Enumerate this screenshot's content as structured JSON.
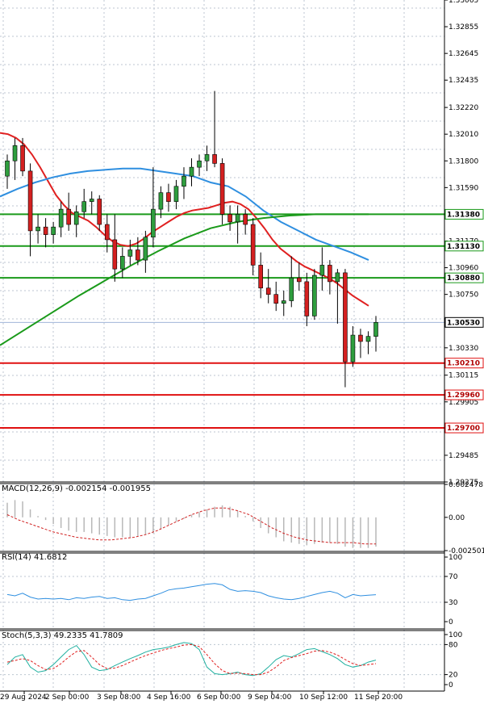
{
  "panels": {
    "macd": {
      "label": "MACD(12,26,9) -0.002154 -0.001955",
      "ticks": [
        "0.002478",
        "0.00",
        "-0.002501"
      ]
    },
    "rsi": {
      "label": "RSI(14) 41.6812",
      "ticks": [
        "100",
        "70",
        "30",
        "0"
      ]
    },
    "stoch": {
      "label": "Stoch(5,3,3) 49.2335 41.7809",
      "ticks": [
        "100",
        "80",
        "20",
        "0"
      ]
    }
  },
  "colors": {
    "bull": "#2e9e3e",
    "bear": "#d42020",
    "wick": "#000000",
    "ma_fast": "#e02020",
    "ma_mid": "#2f8fe0",
    "ma_slow": "#1a9a1a",
    "support": "#e01010",
    "resistance": "#1a9a1a",
    "current": "#a0b4d8",
    "grid": "#bcc6d0"
  },
  "chart_data": {
    "type": "candlestick",
    "y_range": [
      1.29275,
      1.33065
    ],
    "y_ticks": [
      "1.33065",
      "1.32855",
      "1.32645",
      "1.32435",
      "1.32220",
      "1.32010",
      "1.31800",
      "1.31590",
      "1.31380",
      "1.31170",
      "1.31130",
      "1.30960",
      "1.30880",
      "1.30750",
      "1.30530",
      "1.30330",
      "1.30210",
      "1.30115",
      "1.29960",
      "1.29905",
      "1.29700",
      "1.29485",
      "1.29275"
    ],
    "x_labels": [
      "29 Aug 2024",
      "2 Sep 00:00",
      "3 Sep 08:00",
      "4 Sep 16:00",
      "6 Sep 00:00",
      "9 Sep 04:00",
      "10 Sep 12:00",
      "11 Sep 20:00"
    ],
    "horizontal_levels": [
      {
        "value": 1.3138,
        "label": "1.31380",
        "kind": "resistance"
      },
      {
        "value": 1.3113,
        "label": "1.31130",
        "kind": "resistance"
      },
      {
        "value": 1.3088,
        "label": "1.30880",
        "kind": "resistance"
      },
      {
        "value": 1.3053,
        "label": "1.30530",
        "kind": "current"
      },
      {
        "value": 1.3021,
        "label": "1.30210",
        "kind": "support"
      },
      {
        "value": 1.2996,
        "label": "1.29960",
        "kind": "support"
      },
      {
        "value": 1.297,
        "label": "1.29700",
        "kind": "support"
      }
    ],
    "candles": [
      [
        1.3168,
        1.3185,
        1.3158,
        1.318
      ],
      [
        1.318,
        1.3198,
        1.3165,
        1.3192
      ],
      [
        1.3192,
        1.3198,
        1.3168,
        1.3172
      ],
      [
        1.3172,
        1.3178,
        1.3105,
        1.3125
      ],
      [
        1.3125,
        1.3138,
        1.3115,
        1.3128
      ],
      [
        1.3128,
        1.3135,
        1.3112,
        1.3122
      ],
      [
        1.3122,
        1.3132,
        1.3115,
        1.3128
      ],
      [
        1.3128,
        1.3148,
        1.312,
        1.3142
      ],
      [
        1.3142,
        1.3155,
        1.3125,
        1.313
      ],
      [
        1.313,
        1.3145,
        1.312,
        1.314
      ],
      [
        1.314,
        1.3158,
        1.3135,
        1.3148
      ],
      [
        1.3148,
        1.3156,
        1.3138,
        1.315
      ],
      [
        1.315,
        1.3153,
        1.3125,
        1.313
      ],
      [
        1.313,
        1.3138,
        1.3108,
        1.3118
      ],
      [
        1.3118,
        1.3138,
        1.3085,
        1.3095
      ],
      [
        1.3095,
        1.3112,
        1.3088,
        1.3105
      ],
      [
        1.3105,
        1.3118,
        1.3098,
        1.311
      ],
      [
        1.311,
        1.312,
        1.3098,
        1.3102
      ],
      [
        1.3102,
        1.3125,
        1.3092,
        1.312
      ],
      [
        1.312,
        1.3175,
        1.3112,
        1.3142
      ],
      [
        1.3142,
        1.316,
        1.3135,
        1.3155
      ],
      [
        1.3155,
        1.3162,
        1.314,
        1.3148
      ],
      [
        1.3148,
        1.3165,
        1.3142,
        1.316
      ],
      [
        1.316,
        1.3175,
        1.315,
        1.3168
      ],
      [
        1.3168,
        1.3182,
        1.316,
        1.3175
      ],
      [
        1.3175,
        1.3185,
        1.3168,
        1.318
      ],
      [
        1.318,
        1.3192,
        1.3172,
        1.3185
      ],
      [
        1.3185,
        1.3235,
        1.3175,
        1.3178
      ],
      [
        1.3178,
        1.3182,
        1.313,
        1.3138
      ],
      [
        1.3138,
        1.3145,
        1.3125,
        1.3132
      ],
      [
        1.3132,
        1.3145,
        1.3115,
        1.3138
      ],
      [
        1.3138,
        1.3142,
        1.3122,
        1.313
      ],
      [
        1.313,
        1.3135,
        1.309,
        1.3098
      ],
      [
        1.3098,
        1.3108,
        1.3072,
        1.308
      ],
      [
        1.308,
        1.3095,
        1.3068,
        1.3075
      ],
      [
        1.3075,
        1.3085,
        1.3062,
        1.3068
      ],
      [
        1.3068,
        1.3078,
        1.3058,
        1.307
      ],
      [
        1.307,
        1.3105,
        1.3065,
        1.3088
      ],
      [
        1.3088,
        1.31,
        1.3078,
        1.3085
      ],
      [
        1.3085,
        1.3092,
        1.305,
        1.3058
      ],
      [
        1.3058,
        1.3095,
        1.3055,
        1.309
      ],
      [
        1.309,
        1.3112,
        1.3078,
        1.3098
      ],
      [
        1.3098,
        1.3102,
        1.3075,
        1.3085
      ],
      [
        1.3085,
        1.3095,
        1.3052,
        1.3092
      ],
      [
        1.3092,
        1.3095,
        1.3002,
        1.3022
      ],
      [
        1.3022,
        1.305,
        1.3018,
        1.3043
      ],
      [
        1.3043,
        1.3048,
        1.3025,
        1.3038
      ],
      [
        1.3038,
        1.3046,
        1.3028,
        1.3042
      ],
      [
        1.3042,
        1.3058,
        1.303,
        1.3053
      ]
    ],
    "ma_fast": [
      1.3202,
      1.3201,
      1.3198,
      1.3193,
      1.3185,
      1.3175,
      1.3164,
      1.3153,
      1.3145,
      1.3139,
      1.3136,
      1.3133,
      1.3128,
      1.3122,
      1.3117,
      1.3114,
      1.3113,
      1.3115,
      1.3119,
      1.3124,
      1.3128,
      1.3132,
      1.3136,
      1.3139,
      1.3141,
      1.3142,
      1.3143,
      1.3145,
      1.3147,
      1.3148,
      1.3146,
      1.3142,
      1.3135,
      1.3127,
      1.3118,
      1.3111,
      1.3106,
      1.3101,
      1.3097,
      1.3094,
      1.3091,
      1.3088,
      1.3084,
      1.3079,
      1.3074,
      1.307,
      1.3066
    ],
    "ma_mid": [
      1.3152,
      1.3158,
      1.3163,
      1.3167,
      1.317,
      1.3172,
      1.3173,
      1.3174,
      1.3174,
      1.3172,
      1.317,
      1.3168,
      1.3163,
      1.316,
      1.3152,
      1.3141,
      1.3132,
      1.3125,
      1.3118,
      1.3113,
      1.3108,
      1.3102
    ],
    "ma_slow": [
      1.3035,
      1.3048,
      1.3061,
      1.3074,
      1.3086,
      1.3098,
      1.3109,
      1.3119,
      1.3127,
      1.3132,
      1.3135,
      1.3137,
      1.3138,
      1.3138,
      1.3138
    ],
    "macd_hist": [
      0.0011,
      0.0013,
      0.0012,
      0.0006,
      0.0001,
      -0.0002,
      -0.0005,
      -0.0008,
      -0.001,
      -0.0011,
      -0.0011,
      -0.0012,
      -0.0013,
      -0.0014,
      -0.0015,
      -0.0015,
      -0.0015,
      -0.0014,
      -0.0013,
      -0.0012,
      -0.0009,
      -0.0006,
      -0.0003,
      -0.0001,
      0.0002,
      0.0004,
      0.0006,
      0.0008,
      0.0009,
      0.0008,
      0.0005,
      0.0001,
      -0.0003,
      -0.0008,
      -0.0012,
      -0.0015,
      -0.0018,
      -0.0019,
      -0.002,
      -0.0021,
      -0.002,
      -0.0019,
      -0.0019,
      -0.002,
      -0.0022,
      -0.0023,
      -0.0023,
      -0.0023,
      -0.0022
    ],
    "macd_signal": [
      0.0002,
      -0.0002,
      -0.0005,
      -0.0008,
      -0.0011,
      -0.0013,
      -0.0015,
      -0.0016,
      -0.0017,
      -0.0017,
      -0.0016,
      -0.0015,
      -0.0013,
      -0.001,
      -0.0006,
      -0.0002,
      0.0002,
      0.0005,
      0.0007,
      0.0007,
      0.0005,
      0.0002,
      -0.0003,
      -0.0008,
      -0.0012,
      -0.0015,
      -0.0017,
      -0.0018,
      -0.0019,
      -0.0019,
      -0.0019,
      -0.002,
      -0.002
    ],
    "rsi": [
      42,
      40,
      44,
      38,
      35,
      36,
      35,
      36,
      34,
      37,
      36,
      38,
      39,
      36,
      37,
      34,
      33,
      35,
      36,
      40,
      44,
      49,
      51,
      52,
      54,
      56,
      58,
      59,
      57,
      50,
      47,
      48,
      47,
      45,
      40,
      37,
      35,
      34,
      36,
      39,
      42,
      45,
      47,
      44,
      37,
      42,
      40,
      41,
      41.7
    ],
    "stoch_k": [
      40,
      55,
      60,
      35,
      25,
      28,
      40,
      55,
      70,
      78,
      60,
      35,
      28,
      30,
      38,
      45,
      52,
      58,
      65,
      70,
      72,
      75,
      80,
      84,
      82,
      70,
      35,
      22,
      20,
      22,
      25,
      20,
      18,
      22,
      35,
      50,
      58,
      55,
      62,
      70,
      72,
      66,
      60,
      52,
      40,
      35,
      38,
      45,
      49
    ],
    "stoch_d": [
      45,
      48,
      52,
      48,
      38,
      30,
      32,
      42,
      55,
      66,
      68,
      55,
      40,
      32,
      33,
      38,
      45,
      52,
      58,
      63,
      68,
      72,
      75,
      79,
      80,
      76,
      60,
      42,
      28,
      22,
      23,
      22,
      20,
      20,
      25,
      35,
      48,
      54,
      58,
      62,
      67,
      68,
      65,
      59,
      50,
      42,
      38,
      40,
      42
    ]
  }
}
